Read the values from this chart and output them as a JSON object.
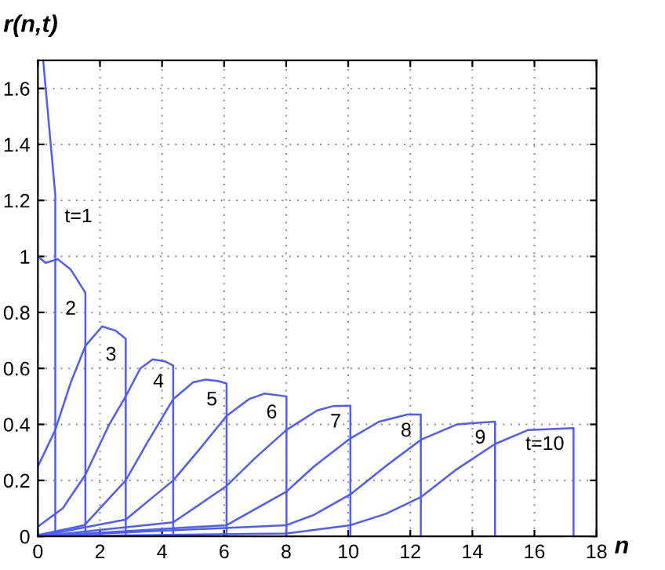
{
  "chart_data": {
    "type": "line",
    "xlabel": "n",
    "ylabel": "r(n,t)",
    "xlim": [
      0,
      18
    ],
    "ylim": [
      0,
      1.7
    ],
    "xticks": [
      0,
      2,
      4,
      6,
      8,
      10,
      12,
      14,
      16,
      18
    ],
    "yticks": [
      0,
      0.2,
      0.4,
      0.6,
      0.8,
      1,
      1.2,
      1.4,
      1.6
    ],
    "grid": true,
    "line_style": "solid",
    "marker": "none",
    "series": [
      {
        "name": "t=1",
        "color": "#4d5cff",
        "x": [
          0.17,
          0.56,
          0.56
        ],
        "values": [
          1.7,
          1.22,
          0
        ]
      },
      {
        "name": "2",
        "color": "#4d5cff",
        "x": [
          0,
          0.25,
          0.64,
          1.06,
          1.53,
          1.53
        ],
        "values": [
          1.0,
          0.977,
          0.99,
          0.953,
          0.87,
          0
        ]
      },
      {
        "name": "3",
        "color": "#4d5cff",
        "x": [
          0,
          0.56,
          1.06,
          1.53,
          2.07,
          2.5,
          2.83,
          2.83
        ],
        "values": [
          0.25,
          0.38,
          0.55,
          0.68,
          0.75,
          0.735,
          0.706,
          0
        ]
      },
      {
        "name": "4",
        "color": "#4d5cff",
        "x": [
          0,
          0.8,
          1.53,
          2.3,
          2.83,
          3.3,
          3.7,
          4.1,
          4.36,
          4.36
        ],
        "values": [
          0.035,
          0.1,
          0.22,
          0.4,
          0.5,
          0.6,
          0.632,
          0.625,
          0.61,
          0
        ]
      },
      {
        "name": "5",
        "color": "#4d5cff",
        "x": [
          0,
          1.5,
          2.83,
          3.5,
          4.36,
          5.0,
          5.4,
          5.8,
          6.08,
          6.08
        ],
        "values": [
          0.005,
          0.04,
          0.2,
          0.33,
          0.49,
          0.55,
          0.56,
          0.555,
          0.546,
          0
        ]
      },
      {
        "name": "6",
        "color": "#4d5cff",
        "x": [
          0,
          2.83,
          4.36,
          5.2,
          6.08,
          6.8,
          7.3,
          8.01,
          8.01
        ],
        "values": [
          0,
          0.06,
          0.2,
          0.31,
          0.43,
          0.49,
          0.51,
          0.5,
          0
        ]
      },
      {
        "name": "7",
        "color": "#4d5cff",
        "x": [
          0,
          4.36,
          6.08,
          7,
          8.01,
          9,
          9.5,
          10.07,
          10.07
        ],
        "values": [
          0,
          0.05,
          0.18,
          0.28,
          0.38,
          0.45,
          0.465,
          0.467,
          0
        ]
      },
      {
        "name": "8",
        "color": "#4d5cff",
        "x": [
          0,
          6.08,
          8.01,
          8.9,
          10.07,
          11,
          11.9,
          12.34,
          12.34
        ],
        "values": [
          0,
          0.04,
          0.16,
          0.25,
          0.35,
          0.41,
          0.435,
          0.435,
          0
        ]
      },
      {
        "name": "9",
        "color": "#4d5cff",
        "x": [
          0,
          8.01,
          8.9,
          10.07,
          11.2,
          12.34,
          13.5,
          14.73,
          14.73
        ],
        "values": [
          0,
          0.04,
          0.077,
          0.15,
          0.25,
          0.345,
          0.4,
          0.41,
          0
        ]
      },
      {
        "name": "t=10",
        "color": "#4d5cff",
        "x": [
          0,
          8.01,
          10.07,
          11.2,
          12.34,
          13.5,
          14.73,
          15.8,
          17.26,
          17.26
        ],
        "values": [
          0,
          0.01,
          0.04,
          0.08,
          0.14,
          0.24,
          0.33,
          0.38,
          0.387,
          0
        ]
      }
    ]
  }
}
